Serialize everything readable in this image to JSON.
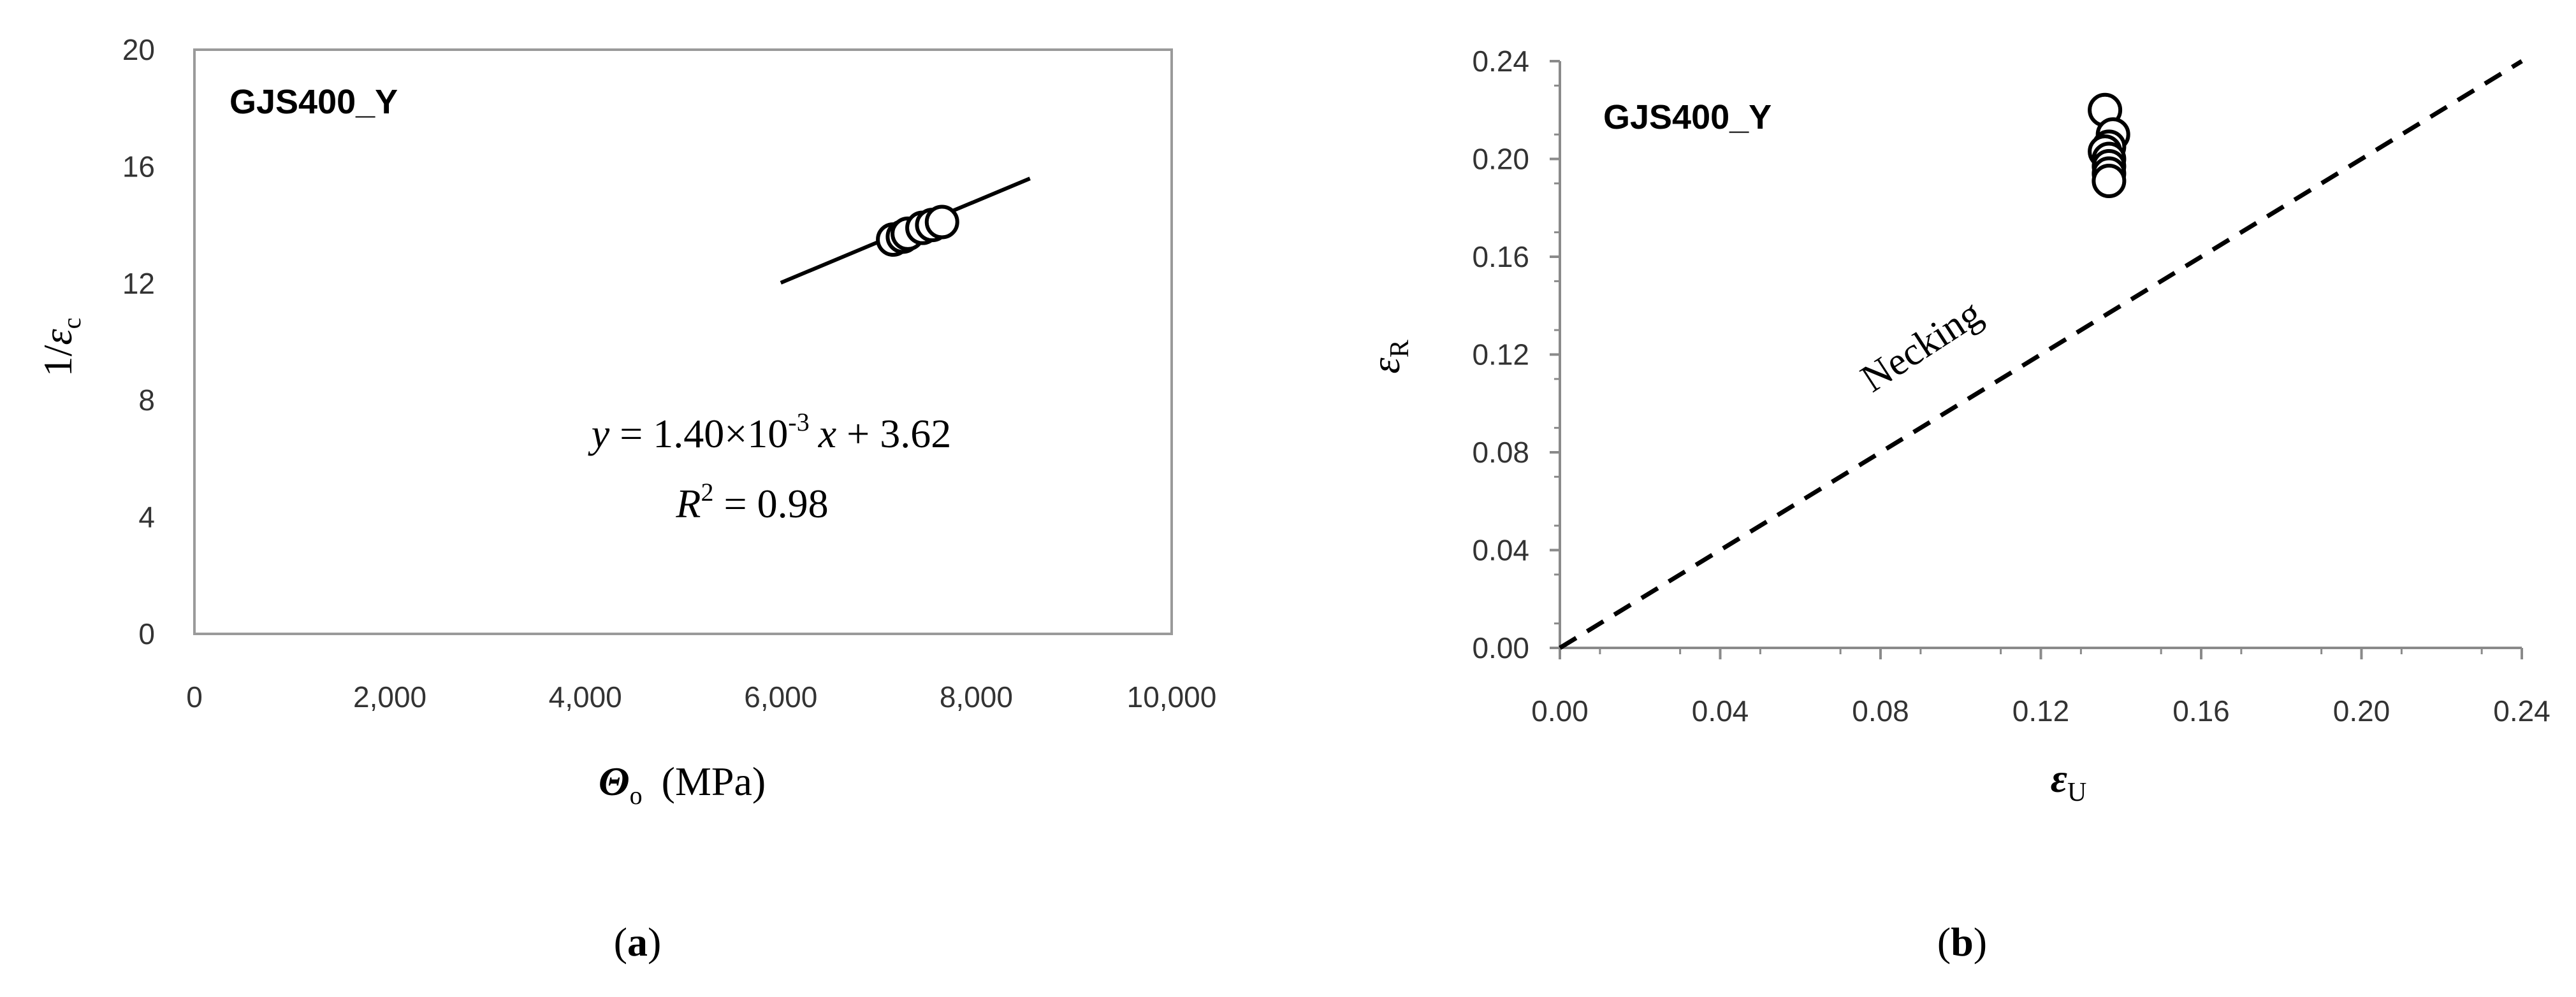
{
  "chart_data": [
    {
      "id": "a",
      "type": "scatter",
      "panel_label": "a",
      "annotation": "GJS400_Y",
      "xlabel_symbol": "Θ",
      "xlabel_subscript": "o",
      "xlabel_unit": "(MPa)",
      "ylabel_prefix": "1/",
      "ylabel_symbol": "ε",
      "ylabel_subscript": "c",
      "xlim": [
        0,
        10000
      ],
      "ylim": [
        0,
        20
      ],
      "x_ticks": [
        "0",
        "2,000",
        "4,000",
        "6,000",
        "8,000",
        "10,000"
      ],
      "y_ticks": [
        "0",
        "4",
        "8",
        "12",
        "16",
        "20"
      ],
      "grid": false,
      "series": [
        {
          "values": [
            {
              "x": 7150,
              "y": 13.5
            },
            {
              "x": 7250,
              "y": 13.6
            },
            {
              "x": 7300,
              "y": 13.7
            },
            {
              "x": 7450,
              "y": 13.9
            },
            {
              "x": 7550,
              "y": 14.0
            },
            {
              "x": 7650,
              "y": 14.1
            }
          ]
        }
      ],
      "fit_line": {
        "slope": 0.0014,
        "intercept": 3.62,
        "x_range": [
          6000,
          8550
        ]
      },
      "equation": {
        "y_var": "y",
        "lhs_rest": " = 1.40×10",
        "exponent": "-3",
        "x_var": "x",
        "rhs_rest": " + 3.62",
        "r2_var": "R",
        "r2_exp": "2",
        "r2_value": " = 0.98"
      }
    },
    {
      "id": "b",
      "type": "scatter",
      "panel_label": "b",
      "annotation": "GJS400_Y",
      "xlabel_symbol": "ε",
      "xlabel_subscript": "U",
      "ylabel_symbol": "ε",
      "ylabel_subscript": "R",
      "xlim": [
        0,
        0.24
      ],
      "ylim": [
        0,
        0.24
      ],
      "x_ticks": [
        "0.00",
        "0.04",
        "0.08",
        "0.12",
        "0.16",
        "0.20",
        "0.24"
      ],
      "y_ticks": [
        "0.00",
        "0.04",
        "0.08",
        "0.12",
        "0.16",
        "0.20",
        "0.24"
      ],
      "grid": false,
      "series": [
        {
          "values": [
            {
              "x": 0.136,
              "y": 0.22
            },
            {
              "x": 0.138,
              "y": 0.21
            },
            {
              "x": 0.137,
              "y": 0.205
            },
            {
              "x": 0.136,
              "y": 0.203
            },
            {
              "x": 0.137,
              "y": 0.2
            },
            {
              "x": 0.137,
              "y": 0.197
            },
            {
              "x": 0.137,
              "y": 0.194
            },
            {
              "x": 0.137,
              "y": 0.191
            }
          ]
        }
      ],
      "reference_line": {
        "label": "Necking",
        "x": [
          0,
          0.24
        ],
        "y": [
          0,
          0.24
        ],
        "style": "dashed"
      }
    }
  ]
}
